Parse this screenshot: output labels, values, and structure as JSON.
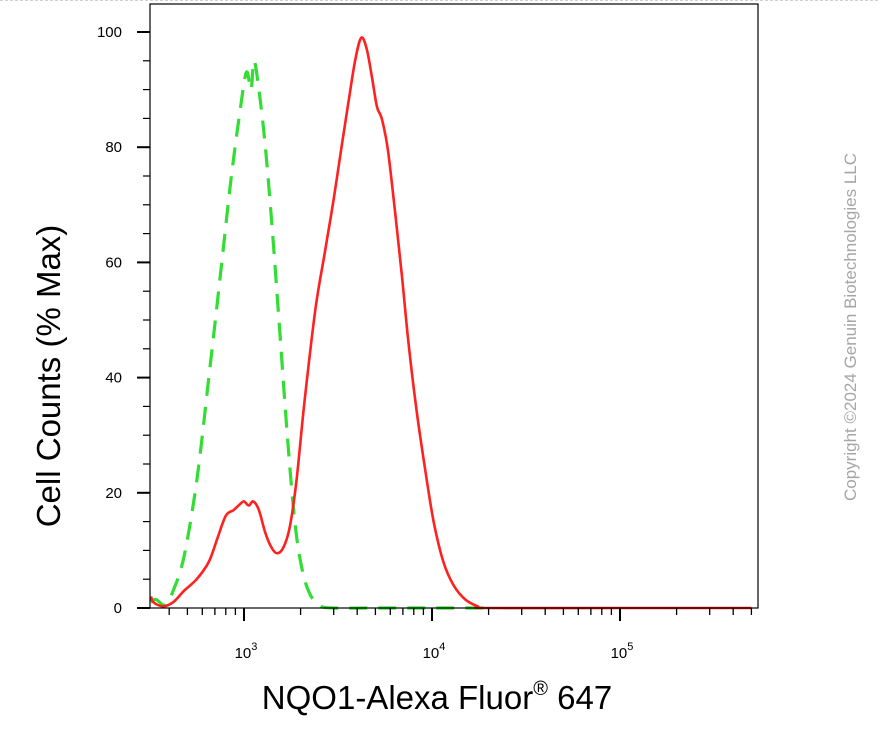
{
  "chart_data": {
    "type": "line",
    "title": "",
    "xlabel_main": "NQO1-Alexa Fluor",
    "xlabel_sup": "®",
    "xlabel_tail": " 647",
    "ylabel": "Cell Counts (% Max)",
    "xscale": "log",
    "xlim": [
      300,
      500000
    ],
    "ylim": [
      0,
      105
    ],
    "y_ticks": [
      0,
      20,
      40,
      60,
      80,
      100
    ],
    "x_ticks": [
      {
        "value": 1000,
        "base": "10",
        "exp": "3"
      },
      {
        "value": 10000,
        "base": "10",
        "exp": "4"
      },
      {
        "value": 100000,
        "base": "10",
        "exp": "5"
      }
    ],
    "grid": false,
    "legend": "none",
    "series": [
      {
        "color": "#33dd33",
        "style": "dashed",
        "points": [
          [
            300,
            1
          ],
          [
            340,
            1.5
          ],
          [
            380,
            0.5
          ],
          [
            420,
            3
          ],
          [
            480,
            9
          ],
          [
            560,
            22
          ],
          [
            650,
            40
          ],
          [
            750,
            58
          ],
          [
            850,
            74
          ],
          [
            950,
            86
          ],
          [
            1030,
            93
          ],
          [
            1090,
            90
          ],
          [
            1130,
            95
          ],
          [
            1200,
            90
          ],
          [
            1300,
            80
          ],
          [
            1420,
            65
          ],
          [
            1550,
            48
          ],
          [
            1700,
            30
          ],
          [
            1850,
            16
          ],
          [
            2000,
            8
          ],
          [
            2200,
            3
          ],
          [
            2500,
            0.5
          ],
          [
            3000,
            0
          ],
          [
            5000,
            0
          ],
          [
            10000,
            0
          ],
          [
            20000,
            0
          ]
        ]
      },
      {
        "color": "#ff2020",
        "style": "solid",
        "points": [
          [
            300,
            2
          ],
          [
            330,
            1
          ],
          [
            370,
            0.3
          ],
          [
            420,
            1
          ],
          [
            480,
            3
          ],
          [
            560,
            5
          ],
          [
            650,
            8
          ],
          [
            720,
            12
          ],
          [
            800,
            16
          ],
          [
            880,
            17
          ],
          [
            950,
            18
          ],
          [
            1000,
            18.5
          ],
          [
            1060,
            17.8
          ],
          [
            1120,
            18.5
          ],
          [
            1200,
            17
          ],
          [
            1300,
            13
          ],
          [
            1400,
            10.5
          ],
          [
            1500,
            9.5
          ],
          [
            1620,
            10.5
          ],
          [
            1750,
            14
          ],
          [
            1900,
            22
          ],
          [
            2100,
            36
          ],
          [
            2400,
            52
          ],
          [
            2700,
            62
          ],
          [
            3000,
            71
          ],
          [
            3300,
            80
          ],
          [
            3600,
            88
          ],
          [
            3900,
            95
          ],
          [
            4200,
            99
          ],
          [
            4500,
            97
          ],
          [
            4800,
            92
          ],
          [
            5100,
            87
          ],
          [
            5400,
            85
          ],
          [
            5800,
            80
          ],
          [
            6300,
            70
          ],
          [
            6900,
            58
          ],
          [
            7500,
            46
          ],
          [
            8300,
            34
          ],
          [
            9200,
            24
          ],
          [
            10200,
            15
          ],
          [
            11500,
            8
          ],
          [
            13000,
            4
          ],
          [
            15000,
            1.5
          ],
          [
            17500,
            0.3
          ],
          [
            20000,
            0
          ],
          [
            100000,
            0
          ],
          [
            500000,
            0
          ]
        ]
      }
    ]
  },
  "copyright": "Copyright ©2024 Genuin Biotechnologies LLC"
}
